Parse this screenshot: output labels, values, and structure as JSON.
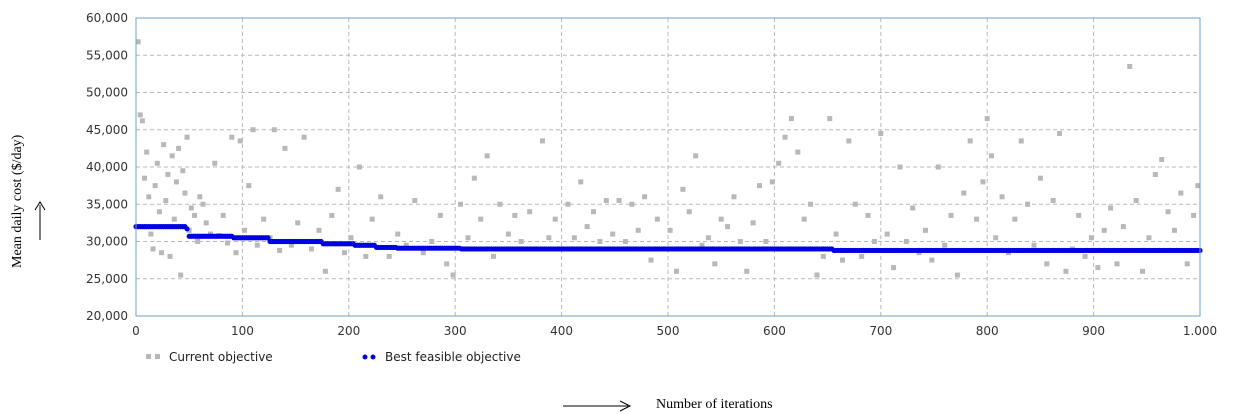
{
  "chart_data": {
    "type": "scatter",
    "xlabel": "Number of iterations",
    "ylabel": "Mean daily cost ($/day)",
    "xlim": [
      0,
      1000
    ],
    "ylim": [
      20000,
      60000
    ],
    "x_ticks": [
      "0",
      "100",
      "200",
      "300",
      "400",
      "500",
      "600",
      "700",
      "800",
      "900",
      "1.000"
    ],
    "y_ticks": [
      "20,000",
      "25,000",
      "30,000",
      "35,000",
      "40,000",
      "45,000",
      "50,000",
      "55,000",
      "60,000"
    ],
    "grid": true,
    "legend_position": "bottom-left",
    "series": [
      {
        "name": "Current objective",
        "color": "#b8b8b8",
        "marker": "square",
        "points": [
          [
            2,
            56800
          ],
          [
            4,
            47000
          ],
          [
            6,
            46200
          ],
          [
            8,
            38500
          ],
          [
            10,
            42000
          ],
          [
            12,
            36000
          ],
          [
            14,
            31000
          ],
          [
            16,
            29000
          ],
          [
            18,
            37500
          ],
          [
            20,
            40500
          ],
          [
            22,
            34000
          ],
          [
            24,
            28500
          ],
          [
            26,
            43000
          ],
          [
            28,
            35500
          ],
          [
            30,
            39000
          ],
          [
            32,
            28000
          ],
          [
            34,
            41500
          ],
          [
            36,
            33000
          ],
          [
            38,
            38000
          ],
          [
            40,
            42500
          ],
          [
            42,
            25500
          ],
          [
            44,
            39500
          ],
          [
            46,
            36500
          ],
          [
            48,
            44000
          ],
          [
            50,
            31500
          ],
          [
            52,
            34500
          ],
          [
            55,
            33500
          ],
          [
            58,
            30000
          ],
          [
            60,
            36000
          ],
          [
            63,
            35000
          ],
          [
            66,
            32500
          ],
          [
            70,
            31000
          ],
          [
            74,
            40500
          ],
          [
            78,
            30800
          ],
          [
            82,
            33500
          ],
          [
            86,
            29800
          ],
          [
            90,
            44000
          ],
          [
            94,
            28500
          ],
          [
            98,
            43500
          ],
          [
            102,
            31500
          ],
          [
            106,
            37500
          ],
          [
            110,
            45000
          ],
          [
            114,
            29500
          ],
          [
            120,
            33000
          ],
          [
            126,
            30500
          ],
          [
            130,
            45000
          ],
          [
            135,
            28800
          ],
          [
            140,
            42500
          ],
          [
            146,
            29500
          ],
          [
            152,
            32500
          ],
          [
            158,
            44000
          ],
          [
            165,
            29000
          ],
          [
            172,
            31500
          ],
          [
            178,
            26000
          ],
          [
            184,
            33500
          ],
          [
            190,
            37000
          ],
          [
            196,
            28500
          ],
          [
            202,
            30500
          ],
          [
            210,
            40000
          ],
          [
            216,
            28000
          ],
          [
            222,
            33000
          ],
          [
            230,
            36000
          ],
          [
            238,
            28000
          ],
          [
            246,
            31000
          ],
          [
            254,
            29500
          ],
          [
            262,
            35500
          ],
          [
            270,
            28500
          ],
          [
            278,
            30000
          ],
          [
            286,
            33500
          ],
          [
            292,
            27000
          ],
          [
            298,
            25500
          ],
          [
            305,
            35000
          ],
          [
            312,
            30500
          ],
          [
            318,
            38500
          ],
          [
            324,
            33000
          ],
          [
            330,
            41500
          ],
          [
            336,
            28000
          ],
          [
            342,
            35000
          ],
          [
            350,
            31000
          ],
          [
            356,
            33500
          ],
          [
            362,
            30000
          ],
          [
            370,
            34000
          ],
          [
            376,
            29000
          ],
          [
            382,
            43500
          ],
          [
            388,
            30500
          ],
          [
            394,
            33000
          ],
          [
            400,
            29000
          ],
          [
            406,
            35000
          ],
          [
            412,
            30500
          ],
          [
            418,
            38000
          ],
          [
            424,
            32000
          ],
          [
            430,
            34000
          ],
          [
            436,
            30000
          ],
          [
            442,
            35500
          ],
          [
            448,
            31000
          ],
          [
            454,
            35500
          ],
          [
            460,
            30000
          ],
          [
            466,
            35000
          ],
          [
            472,
            31500
          ],
          [
            478,
            36000
          ],
          [
            484,
            27500
          ],
          [
            490,
            33000
          ],
          [
            496,
            29000
          ],
          [
            502,
            31500
          ],
          [
            508,
            26000
          ],
          [
            514,
            37000
          ],
          [
            520,
            34000
          ],
          [
            526,
            41500
          ],
          [
            532,
            29500
          ],
          [
            538,
            30500
          ],
          [
            544,
            27000
          ],
          [
            550,
            33000
          ],
          [
            556,
            32000
          ],
          [
            562,
            36000
          ],
          [
            568,
            30000
          ],
          [
            574,
            26000
          ],
          [
            580,
            32500
          ],
          [
            586,
            37500
          ],
          [
            592,
            30000
          ],
          [
            598,
            38000
          ],
          [
            604,
            40500
          ],
          [
            610,
            44000
          ],
          [
            616,
            46500
          ],
          [
            622,
            42000
          ],
          [
            628,
            33000
          ],
          [
            634,
            35000
          ],
          [
            640,
            25500
          ],
          [
            646,
            28000
          ],
          [
            652,
            46500
          ],
          [
            658,
            31000
          ],
          [
            664,
            27500
          ],
          [
            670,
            43500
          ],
          [
            676,
            35000
          ],
          [
            682,
            28000
          ],
          [
            688,
            33500
          ],
          [
            694,
            30000
          ],
          [
            700,
            44500
          ],
          [
            706,
            31000
          ],
          [
            712,
            26500
          ],
          [
            718,
            40000
          ],
          [
            724,
            30000
          ],
          [
            730,
            34500
          ],
          [
            736,
            28500
          ],
          [
            742,
            31500
          ],
          [
            748,
            27500
          ],
          [
            754,
            40000
          ],
          [
            760,
            29500
          ],
          [
            766,
            33500
          ],
          [
            772,
            25500
          ],
          [
            778,
            36500
          ],
          [
            784,
            43500
          ],
          [
            790,
            33000
          ],
          [
            796,
            38000
          ],
          [
            800,
            46500
          ],
          [
            804,
            41500
          ],
          [
            808,
            30500
          ],
          [
            814,
            36000
          ],
          [
            820,
            28500
          ],
          [
            826,
            33000
          ],
          [
            832,
            43500
          ],
          [
            838,
            35000
          ],
          [
            844,
            29500
          ],
          [
            850,
            38500
          ],
          [
            856,
            27000
          ],
          [
            862,
            35500
          ],
          [
            868,
            44500
          ],
          [
            874,
            26000
          ],
          [
            880,
            29000
          ],
          [
            886,
            33500
          ],
          [
            892,
            28000
          ],
          [
            898,
            30500
          ],
          [
            904,
            26500
          ],
          [
            910,
            31500
          ],
          [
            916,
            34500
          ],
          [
            922,
            27000
          ],
          [
            928,
            32000
          ],
          [
            934,
            53500
          ],
          [
            940,
            35500
          ],
          [
            946,
            26000
          ],
          [
            952,
            30500
          ],
          [
            958,
            39000
          ],
          [
            964,
            41000
          ],
          [
            970,
            34000
          ],
          [
            976,
            31500
          ],
          [
            982,
            36500
          ],
          [
            988,
            27000
          ],
          [
            994,
            33500
          ],
          [
            998,
            37500
          ]
        ]
      },
      {
        "name": "Best feasible objective",
        "color": "#0000e6",
        "marker": "circle",
        "points": [
          [
            0,
            32000
          ],
          [
            45,
            32000
          ],
          [
            48,
            31700
          ],
          [
            50,
            30700
          ],
          [
            90,
            30700
          ],
          [
            92,
            30500
          ],
          [
            120,
            30500
          ],
          [
            125,
            30000
          ],
          [
            170,
            30000
          ],
          [
            175,
            29700
          ],
          [
            200,
            29700
          ],
          [
            205,
            29500
          ],
          [
            220,
            29500
          ],
          [
            225,
            29200
          ],
          [
            240,
            29200
          ],
          [
            245,
            29100
          ],
          [
            300,
            29100
          ],
          [
            305,
            29000
          ],
          [
            650,
            29000
          ],
          [
            655,
            28800
          ],
          [
            1000,
            28800
          ]
        ]
      }
    ]
  }
}
